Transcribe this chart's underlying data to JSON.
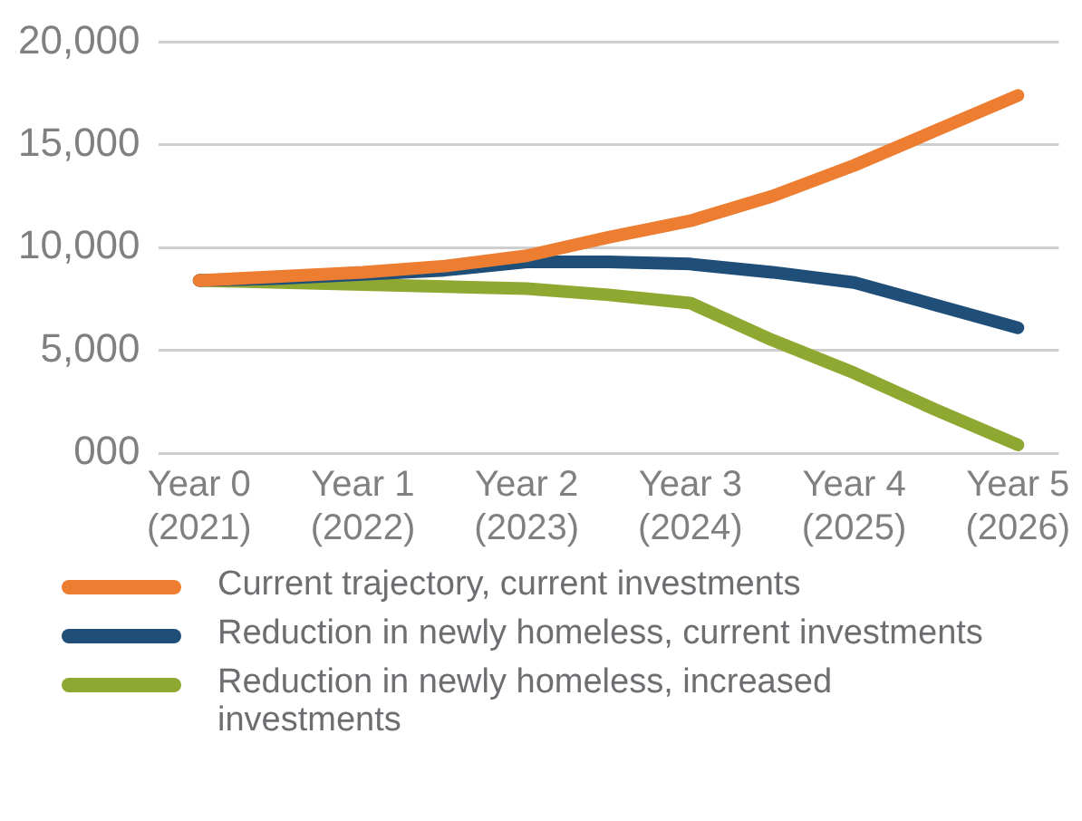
{
  "chart_data": {
    "type": "line",
    "legend": "bottom",
    "grid": "y",
    "marker": "none",
    "line_style": "solid",
    "categories": [
      "Year 0 (2021)",
      null,
      "Year 1 (2022)",
      null,
      "Year 2 (2023)",
      null,
      "Year 3 (2024)",
      null,
      "Year 4 (2025)",
      null,
      "Year 5 (2026)"
    ],
    "ylim": [
      0,
      20000
    ],
    "yticks": [
      {
        "value": 0,
        "label": "000"
      },
      {
        "value": 5000,
        "label": "5,000"
      },
      {
        "value": 10000,
        "label": "10,000"
      },
      {
        "value": 15000,
        "label": "15,000"
      },
      {
        "value": 20000,
        "label": "20,000"
      }
    ],
    "series": [
      {
        "name": "Current trajectory, current investments",
        "color": "#ed7d31",
        "values": [
          8400,
          8600,
          8800,
          9100,
          9600,
          10500,
          11300,
          12500,
          14000,
          15700,
          17400
        ]
      },
      {
        "name": "Reduction in newly homeless, current investments",
        "color": "#1f4e79",
        "values": [
          8400,
          8500,
          8700,
          8900,
          9300,
          9300,
          9200,
          8800,
          8300,
          7200,
          6100
        ]
      },
      {
        "name": "Reduction in newly homeless, increased investments",
        "color": "#8fa832",
        "values": [
          8400,
          8300,
          8200,
          8100,
          8000,
          7700,
          7300,
          5500,
          3900,
          2100,
          400
        ]
      }
    ]
  }
}
